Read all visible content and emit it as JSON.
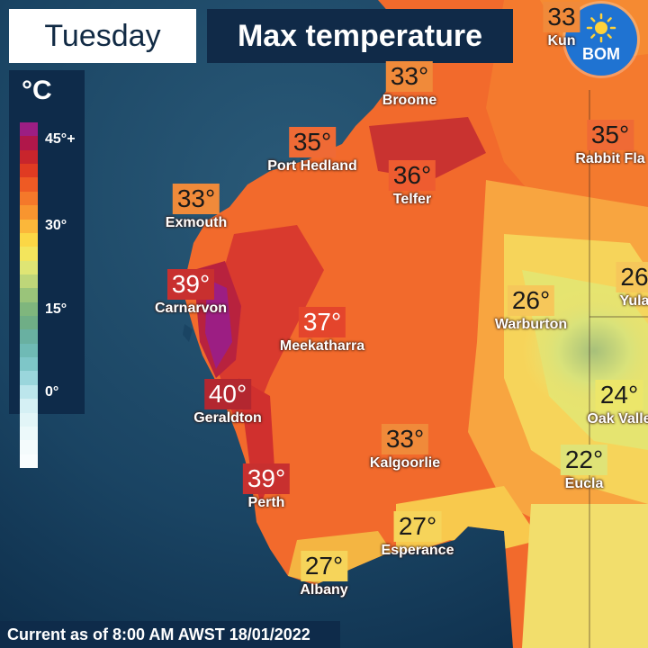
{
  "header": {
    "day_label": "Tuesday",
    "title": "Max temperature"
  },
  "badge": {
    "logo_text": "BOM",
    "icon": "sun-icon"
  },
  "legend": {
    "unit": "°C",
    "ticks": [
      "45°+",
      "30°",
      "15°",
      "0°"
    ],
    "colors": [
      "#9c1e83",
      "#b0174a",
      "#c8252c",
      "#e03b22",
      "#ee5a24",
      "#f4782a",
      "#f8952f",
      "#fbb73a",
      "#fbd745",
      "#f3e55c",
      "#dfe574",
      "#bed679",
      "#9ac47a",
      "#7fb67d",
      "#6fae86",
      "#69b0a1",
      "#6fbab5",
      "#7ec6c8",
      "#9ad6dc",
      "#bce6ec",
      "#d5f0f4",
      "#e2f5f7",
      "#ecf9fa",
      "#f4fbfc",
      "#f9fdfe"
    ]
  },
  "cities": [
    {
      "name": "Broome",
      "temp": "33°",
      "color": "#f08a3a"
    },
    {
      "name": "Port Hedland",
      "temp": "35°",
      "color": "#ef6a35"
    },
    {
      "name": "Telfer",
      "temp": "36°",
      "color": "#ee5c30"
    },
    {
      "name": "Exmouth",
      "temp": "33°",
      "color": "#f08a3a"
    },
    {
      "name": "Carnarvon",
      "temp": "39°",
      "color": "#c8302f"
    },
    {
      "name": "Meekatharra",
      "temp": "37°",
      "color": "#e4452c"
    },
    {
      "name": "Geraldton",
      "temp": "40°",
      "color": "#b32730"
    },
    {
      "name": "Perth",
      "temp": "39°",
      "color": "#c8302f"
    },
    {
      "name": "Kalgoorlie",
      "temp": "33°",
      "color": "#f08a3a"
    },
    {
      "name": "Warburton",
      "temp": "26°",
      "color": "#f6c75a"
    },
    {
      "name": "Esperance",
      "temp": "27°",
      "color": "#f6d45a"
    },
    {
      "name": "Albany",
      "temp": "27°",
      "color": "#f6d45a"
    },
    {
      "name": "Eucla",
      "temp": "22°",
      "color": "#dfe377"
    },
    {
      "name": "Rabbit Fla",
      "temp": "35°",
      "color": "#ef6a35"
    },
    {
      "name": "Yula",
      "temp": "26",
      "color": "#f6c75a"
    },
    {
      "name": "Oak Valle",
      "temp": "24°",
      "color": "#ece66a"
    },
    {
      "name": "Kun",
      "temp": "33",
      "color": "#f08a3a"
    }
  ],
  "footer": {
    "text": "Current as of 8:00 AM AWST 18/01/2022"
  }
}
